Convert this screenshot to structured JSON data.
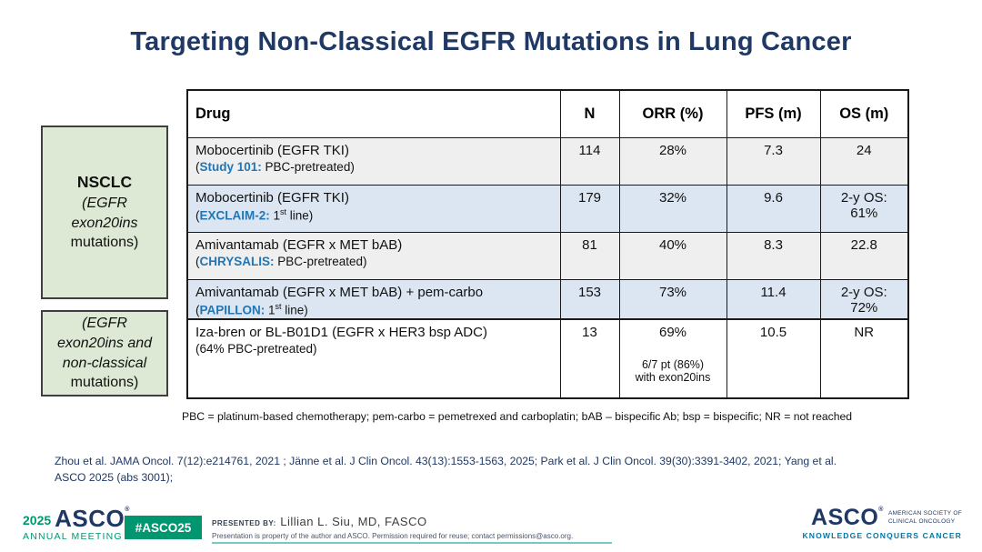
{
  "title": "Targeting Non-Classical EGFR Mutations in Lung Cancer",
  "side_boxes": [
    {
      "lines": [
        {
          "text": "NSCLC",
          "bold": true
        },
        {
          "text": "(EGFR",
          "italic": true
        },
        {
          "text": "exon20ins",
          "italic": true
        },
        {
          "text": "mutations)"
        }
      ]
    },
    {
      "lines": [
        {
          "text": "(EGFR",
          "italic": true
        },
        {
          "text": "exon20ins and",
          "italic": true
        },
        {
          "text": "non-classical",
          "italic": true
        },
        {
          "text": "mutations)"
        }
      ]
    }
  ],
  "table": {
    "headers": [
      "Drug",
      "N",
      "ORR (%)",
      "PFS (m)",
      "OS (m)"
    ],
    "rows": [
      {
        "shade": "gray",
        "drug_line1": "Mobocertinib (EGFR TKI)",
        "drug_line2": [
          {
            "text": "("
          },
          {
            "text": "Study 101:",
            "accent": true
          },
          {
            "text": " PBC-pretreated)"
          }
        ],
        "n": [
          "114"
        ],
        "orr": [
          "28%"
        ],
        "pfs": [
          "7.3"
        ],
        "os": [
          "24"
        ]
      },
      {
        "shade": "blue",
        "drug_line1": "Mobocertinib (EGFR TKI)",
        "drug_line2": [
          {
            "text": "("
          },
          {
            "text": "EXCLAIM-2:",
            "accent": true
          },
          {
            "text": " 1"
          },
          {
            "text": "st",
            "sup": true
          },
          {
            "text": " line)"
          }
        ],
        "n": [
          "179"
        ],
        "orr": [
          "32%"
        ],
        "pfs": [
          "9.6"
        ],
        "os": [
          "2-y OS:",
          "61%"
        ]
      },
      {
        "shade": "gray",
        "drug_line1": "Amivantamab (EGFR x MET bAB)",
        "drug_line2": [
          {
            "text": "("
          },
          {
            "text": "CHRYSALIS:",
            "accent": true
          },
          {
            "text": " PBC-pretreated)"
          }
        ],
        "n": [
          "81"
        ],
        "orr": [
          "40%"
        ],
        "pfs": [
          "8.3"
        ],
        "os": [
          "22.8"
        ]
      },
      {
        "shade": "blue",
        "drug_line1": "Amivantamab (EGFR x MET bAB) + pem-carbo",
        "drug_line2": [
          {
            "text": "("
          },
          {
            "text": "PAPILLON:",
            "accent": true
          },
          {
            "text": " 1"
          },
          {
            "text": "st",
            "sup": true
          },
          {
            "text": " line)"
          }
        ],
        "n": [
          "153"
        ],
        "orr": [
          "73%"
        ],
        "pfs": [
          "11.4"
        ],
        "os": [
          "2-y OS:",
          "72%"
        ]
      }
    ]
  },
  "table2": {
    "rows": [
      {
        "shade": "white",
        "drug_line1": "Iza-bren or BL-B01D1 (EGFR x HER3 bsp ADC)",
        "drug_line2": [
          {
            "text": "(64% PBC-pretreated)"
          }
        ],
        "n": [
          "13"
        ],
        "orr": [
          "69%",
          "",
          "6/7 pt (86%)",
          "with exon20ins"
        ],
        "pfs": [
          "10.5"
        ],
        "os": [
          "NR"
        ]
      }
    ]
  },
  "footnote": "PBC = platinum-based chemotherapy; pem-carbo = pemetrexed and carboplatin; bAB – bispecific Ab; bsp = bispecific; NR = not reached",
  "references": [
    "Zhou et al. JAMA Oncol. 7(12):e214761, 2021 ; Jänne et al. J Clin Oncol. 43(13):1553-1563, 2025;  Park et al. J Clin Oncol. 39(30):3391-3402, 2021; Yang et al.",
    "ASCO 2025 (abs 3001);"
  ],
  "footer": {
    "meeting_year": "2025",
    "meeting_logo_text": "ASCO",
    "meeting_reg_mark": "®",
    "meeting_sub": "ANNUAL MEETING",
    "hashtag": "#ASCO25",
    "presented_by_label": "PRESENTED BY:",
    "presenter": "Lillian L. Siu, MD, FASCO",
    "permission": "Presentation is property of the author and ASCO. Permission required for reuse; contact permissions@asco.org.",
    "asco_logo_text": "ASCO",
    "asco_reg_mark": "®",
    "asco_society_line1": "AMERICAN SOCIETY OF",
    "asco_society_line2": "CLINICAL ONCOLOGY",
    "asco_tagline": "KNOWLEDGE CONQUERS CANCER"
  },
  "colors": {
    "title_navy": "#1F3864",
    "study_accent_blue": "#2076B6",
    "row_gray": "#EFEFEF",
    "row_blue": "#DCE6F2",
    "side_box_green": "#DDE9D4",
    "asco_green": "#009770",
    "tagline_teal": "#0077AA"
  }
}
